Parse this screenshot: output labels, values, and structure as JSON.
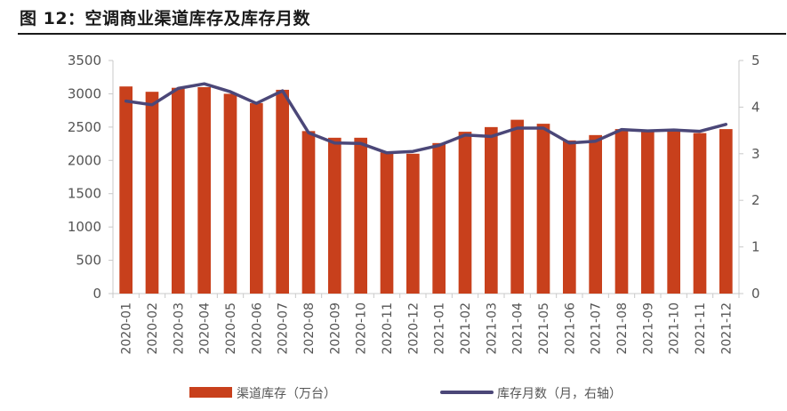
{
  "figure_title": "图 12：空调商业渠道库存及库存月数",
  "colors": {
    "bar": "#c8401c",
    "line": "#4b4778",
    "axis": "#c9c9c9",
    "tick_text": "#555555"
  },
  "chart_data": {
    "type": "bar",
    "title": "",
    "categories": [
      "2020-01",
      "2020-02",
      "2020-03",
      "2020-04",
      "2020-05",
      "2020-06",
      "2020-07",
      "2020-08",
      "2020-09",
      "2020-10",
      "2020-11",
      "2020-12",
      "2021-01",
      "2021-02",
      "2021-03",
      "2021-04",
      "2021-05",
      "2021-06",
      "2021-07",
      "2021-08",
      "2021-09",
      "2021-10",
      "2021-11",
      "2021-12"
    ],
    "series": [
      {
        "name": "渠道库存（万台）",
        "type": "bar",
        "axis": "left",
        "values": [
          3110,
          3030,
          3090,
          3100,
          3000,
          2860,
          3060,
          2440,
          2340,
          2340,
          2120,
          2100,
          2260,
          2430,
          2500,
          2610,
          2550,
          2300,
          2380,
          2470,
          2450,
          2470,
          2410,
          2470
        ]
      },
      {
        "name": "库存月数（月，右轴）",
        "type": "line",
        "axis": "right",
        "values": [
          4.13,
          4.05,
          4.4,
          4.5,
          4.33,
          4.08,
          4.35,
          3.45,
          3.23,
          3.22,
          3.02,
          3.05,
          3.18,
          3.4,
          3.37,
          3.55,
          3.55,
          3.23,
          3.27,
          3.52,
          3.49,
          3.51,
          3.48,
          3.63
        ]
      }
    ],
    "y_left": {
      "min": 0,
      "max": 3500,
      "ticks": [
        "0",
        "500",
        "1000",
        "1500",
        "2000",
        "2500",
        "3000",
        "3500"
      ]
    },
    "y_right": {
      "min": 0,
      "max": 5,
      "ticks": [
        "0",
        "1",
        "2",
        "3",
        "4",
        "5"
      ]
    },
    "grid": false,
    "legend_position": "bottom"
  }
}
